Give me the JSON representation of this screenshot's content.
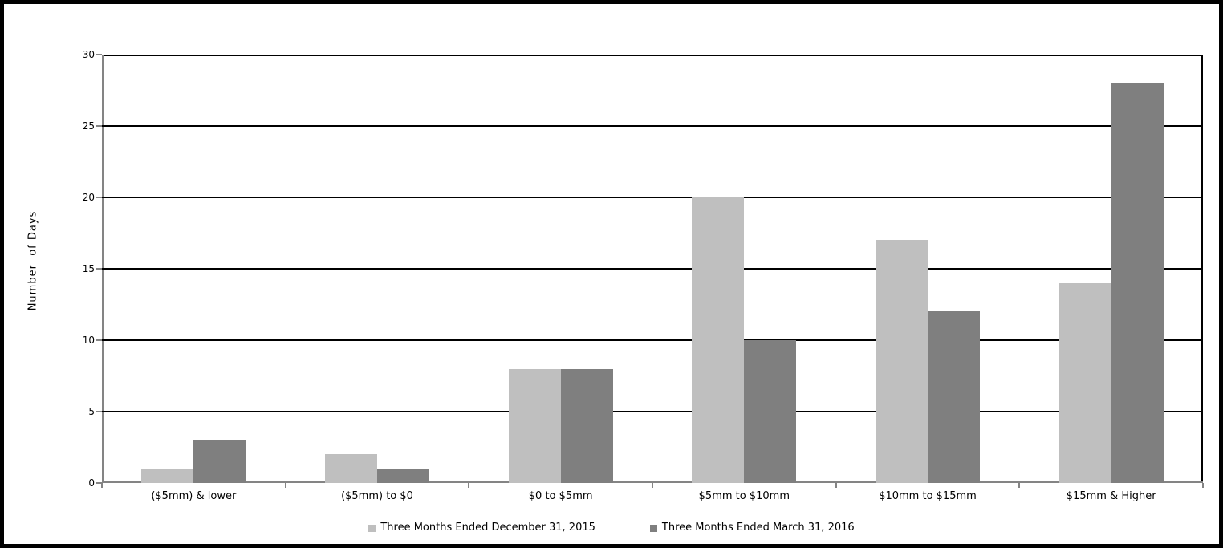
{
  "window": {
    "background": "#ffffff",
    "frame_border_color": "#000000"
  },
  "chart_data": {
    "type": "bar",
    "title": "",
    "ylabel": "Number  of Days",
    "xlabel": "",
    "categories": [
      "($5mm) & lower",
      "($5mm) to $0",
      "$0 to $5mm",
      "$5mm to $10mm",
      "$10mm to $15mm",
      "$15mm & Higher"
    ],
    "series": [
      {
        "name": "Three Months Ended December 31, 2015",
        "color": "#bfbfbf",
        "values": [
          1,
          2,
          8,
          20,
          17,
          14
        ]
      },
      {
        "name": "Three Months Ended March 31, 2016",
        "color": "#7f7f7f",
        "values": [
          3,
          1,
          8,
          10,
          12,
          28
        ]
      }
    ],
    "ylim": [
      0,
      30
    ],
    "yticks": [
      0,
      5,
      10,
      15,
      20,
      25,
      30
    ],
    "grid": "horizontal",
    "gridline_color": "#000000",
    "axis_color": "#848484",
    "text_color": "#000000",
    "legend_position": "bottom-center"
  }
}
